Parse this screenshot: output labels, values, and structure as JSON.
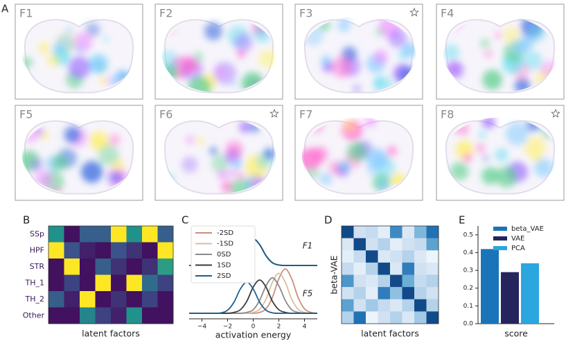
{
  "panel_letters": [
    "A",
    "B",
    "C",
    "D",
    "E"
  ],
  "brain_maps": [
    {
      "label": "F1",
      "starred": false
    },
    {
      "label": "F2",
      "starred": false
    },
    {
      "label": "F3",
      "starred": true
    },
    {
      "label": "F4",
      "starred": false
    },
    {
      "label": "F5",
      "starred": false
    },
    {
      "label": "F6",
      "starred": true
    },
    {
      "label": "F7",
      "starred": false
    },
    {
      "label": "F8",
      "starred": true
    }
  ],
  "chart_data": [
    {
      "type": "heatmap",
      "row_labels": [
        "SSp",
        "HPF",
        "STR",
        "TH_1",
        "TH_2",
        "Other"
      ],
      "xlabel": "latent factors",
      "colormap": "viridis",
      "zlim": [
        0,
        1
      ],
      "values": [
        [
          0.5,
          0.05,
          0.3,
          0.3,
          1,
          0.5,
          1,
          0.3
        ],
        [
          1,
          0.25,
          0.1,
          0.05,
          0.25,
          0.15,
          0.05,
          1
        ],
        [
          0.05,
          1,
          0.05,
          0.3,
          0.15,
          0.05,
          0.15,
          0.55
        ],
        [
          0.05,
          0.2,
          0.05,
          1,
          0.05,
          1,
          0.35,
          0.2
        ],
        [
          0.3,
          0.1,
          1,
          0.05,
          0.15,
          0.05,
          0.2,
          0.05
        ],
        [
          0.05,
          0.05,
          0.45,
          0.2,
          0.1,
          0.5,
          0.05,
          0.05
        ]
      ]
    },
    {
      "type": "line",
      "xlabel": "activation energy",
      "groups": [
        "F1",
        "F5"
      ],
      "x": [
        -5,
        -4.5,
        -4,
        -3.5,
        -3,
        -2.5,
        -2,
        -1.5,
        -1,
        -0.5,
        0,
        0.5,
        1,
        1.5,
        2,
        2.5,
        3,
        3.5,
        4,
        4.5,
        5
      ],
      "xlim": [
        -5,
        5
      ],
      "ylim": [
        0,
        1
      ],
      "xticks": [
        {
          "value": -4,
          "label": "−4"
        },
        {
          "value": -2,
          "label": "−2"
        },
        0,
        2,
        4
      ],
      "series": [
        {
          "name": "-2SD",
          "color": "#c98e78",
          "values": [
            [
              0,
              0,
              0,
              0,
              0,
              0,
              0.01,
              0.06,
              0.22,
              0.47,
              0.6,
              0.47,
              0.22,
              0.06,
              0.01,
              0,
              0,
              0,
              0,
              0,
              0
            ],
            [
              0,
              0,
              0,
              0,
              0,
              0,
              0,
              0,
              0,
              0,
              0,
              0.02,
              0.1,
              0.36,
              0.78,
              1,
              0.78,
              0.36,
              0.1,
              0.02,
              0
            ]
          ]
        },
        {
          "name": "-1SD",
          "color": "#d8bf9f",
          "values": [
            [
              0,
              0,
              0,
              0,
              0,
              0,
              0.01,
              0.06,
              0.22,
              0.47,
              0.6,
              0.47,
              0.22,
              0.06,
              0.01,
              0,
              0,
              0,
              0,
              0,
              0
            ],
            [
              0,
              0,
              0,
              0,
              0,
              0,
              0,
              0,
              0,
              0,
              0.02,
              0.09,
              0.32,
              0.7,
              0.9,
              0.7,
              0.32,
              0.09,
              0.02,
              0,
              0
            ]
          ]
        },
        {
          "name": "0SD",
          "color": "#8a8a8a",
          "values": [
            [
              0,
              0,
              0,
              0,
              0,
              0,
              0.01,
              0.06,
              0.22,
              0.47,
              0.6,
              0.47,
              0.22,
              0.06,
              0.01,
              0,
              0,
              0,
              0,
              0,
              0
            ],
            [
              0,
              0,
              0,
              0,
              0,
              0,
              0,
              0,
              0,
              0.02,
              0.08,
              0.29,
              0.62,
              0.8,
              0.62,
              0.29,
              0.08,
              0.02,
              0,
              0,
              0
            ]
          ]
        },
        {
          "name": "1SD",
          "color": "#3a3a3a",
          "values": [
            [
              0,
              0,
              0,
              0,
              0,
              0,
              0.01,
              0.06,
              0.22,
              0.47,
              0.6,
              0.47,
              0.22,
              0.06,
              0.01,
              0,
              0,
              0,
              0,
              0,
              0
            ],
            [
              0,
              0,
              0,
              0,
              0,
              0,
              0,
              0.02,
              0.08,
              0.27,
              0.59,
              0.75,
              0.59,
              0.27,
              0.08,
              0.02,
              0,
              0,
              0,
              0,
              0
            ]
          ]
        },
        {
          "name": "2SD",
          "color": "#1d5e8e",
          "values": [
            [
              0,
              0,
              0,
              0,
              0,
              0,
              0.01,
              0.06,
              0.22,
              0.47,
              0.6,
              0.47,
              0.22,
              0.06,
              0.01,
              0,
              0,
              0,
              0,
              0,
              0
            ],
            [
              0,
              0,
              0,
              0,
              0,
              0.01,
              0.07,
              0.25,
              0.55,
              0.7,
              0.55,
              0.25,
              0.07,
              0.01,
              0,
              0,
              0,
              0,
              0,
              0,
              0
            ]
          ]
        }
      ]
    },
    {
      "type": "heatmap",
      "ylabel": "beta-VAE",
      "xlabel": "latent factors",
      "colormap": "blues",
      "zlim": [
        0,
        1
      ],
      "values": [
        [
          0.9,
          0.2,
          0.25,
          0.1,
          0.65,
          0.15,
          0.45,
          0.75
        ],
        [
          0.15,
          0.9,
          0.2,
          0.3,
          0.1,
          0.2,
          0.25,
          0.55
        ],
        [
          0.1,
          0.25,
          0.9,
          0.15,
          0.2,
          0.3,
          0.15,
          0.05
        ],
        [
          0.25,
          0.1,
          0.3,
          0.9,
          0.15,
          0.7,
          0.2,
          0.15
        ],
        [
          0.6,
          0.2,
          0.15,
          0.3,
          0.9,
          0.5,
          0.25,
          0.3
        ],
        [
          0.2,
          0.3,
          0.1,
          0.7,
          0.4,
          0.9,
          0.3,
          0.2
        ],
        [
          0.55,
          0.2,
          0.35,
          0.25,
          0.15,
          0.3,
          0.9,
          0.3
        ],
        [
          0.3,
          0.75,
          0.05,
          0.2,
          0.3,
          0.15,
          0.35,
          0.9
        ]
      ]
    },
    {
      "type": "bar",
      "xlabel": "score",
      "ylim": [
        0,
        0.55
      ],
      "yticks": [
        {
          "value": 0,
          "label": "0.0"
        },
        0.1,
        0.2,
        0.3,
        0.4,
        0.5
      ],
      "series": [
        {
          "name": "beta_VAE",
          "color": "#1a74ba",
          "values": [
            0.42
          ]
        },
        {
          "name": "VAE",
          "color": "#25245e",
          "values": [
            0.29
          ]
        },
        {
          "name": "PCA",
          "color": "#2ba6df",
          "values": [
            0.34
          ]
        }
      ]
    }
  ]
}
